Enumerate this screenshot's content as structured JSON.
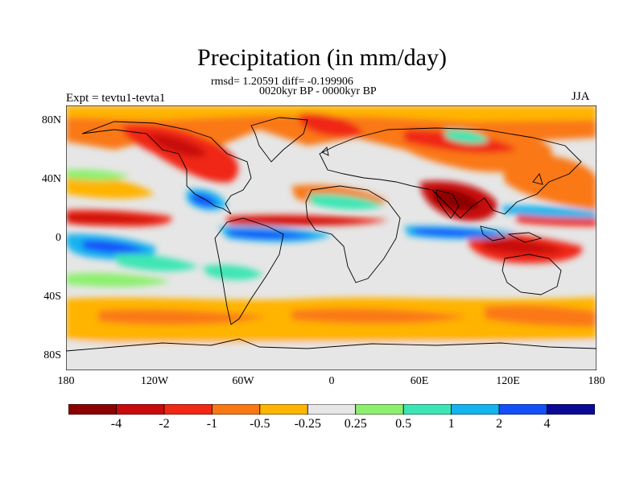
{
  "title": "Precipitation (in mm/day)",
  "stats": "rmsd= 1.20591 diff= -0.199906",
  "period": "0020kyr BP - 0000kyr BP",
  "expt": "Expt = tevtu1-tevta1",
  "season": "JJA",
  "lat_labels": [
    "80N",
    "40N",
    "0",
    "40S",
    "80S"
  ],
  "lon_labels": [
    "180",
    "120W",
    "60W",
    "0",
    "60E",
    "120E",
    "180"
  ],
  "colorbar": {
    "colors": [
      "#8b0000",
      "#c80a0a",
      "#f02814",
      "#fa7814",
      "#ffb400",
      "#e6e6e6",
      "#8cf06e",
      "#3ce6b4",
      "#14b4f0",
      "#1450fa",
      "#0a0a96"
    ],
    "labels": [
      "-4",
      "-2",
      "-1",
      "-0.5",
      "-0.25",
      "0.25",
      "0.5",
      "1",
      "2",
      "4"
    ]
  }
}
